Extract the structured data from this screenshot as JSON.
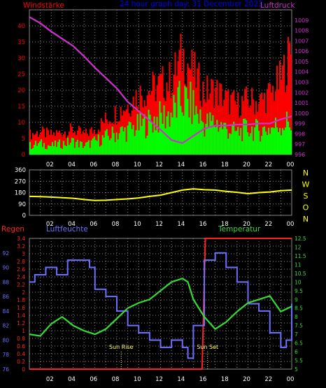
{
  "colors": {
    "background": "#000000",
    "plot_bg": "#000000",
    "grid": "#8a8a8a",
    "axis_text": "#ffffff",
    "wind_gust": "#ff0000",
    "wind_avg": "#00ff00",
    "pressure": "#cc33cc",
    "direction": "#ffff00",
    "humidity": "#6f6fff",
    "temperature": "#33dd33",
    "rain": "#ff2020",
    "sun": "#ffff66",
    "title": "#0000ff"
  },
  "panel1": {
    "title": "24 hour graph day: 31 December 2023",
    "left_label": "Windstärke",
    "right_label": "Luftdruck"
  },
  "panel2": {
    "right_letters": [
      "N",
      "W",
      "S",
      "O",
      "N"
    ]
  },
  "panel3": {
    "left_label": "Regen",
    "mid_label": "Luftfeuchte",
    "right_label": "Temperatur",
    "sunrise_label": "Sun Rise",
    "sunset_label": "Sun Set"
  },
  "chart_data": [
    {
      "type": "bar",
      "name": "wind",
      "title": "24 hour graph day: 31 December 2023",
      "x_ticks": [
        "02",
        "04",
        "06",
        "08",
        "10",
        "12",
        "14",
        "16",
        "18",
        "20",
        "22",
        "00"
      ],
      "x_range_hours": [
        0,
        24
      ],
      "ylim_left": [
        0,
        45
      ],
      "y_ticks_left": [
        0,
        5,
        10,
        15,
        20,
        25,
        30,
        35,
        40
      ],
      "ylim_right": [
        996,
        1010
      ],
      "y_ticks_right": [
        996,
        997,
        998,
        999,
        1000,
        1001,
        1002,
        1003,
        1004,
        1005,
        1006,
        1007,
        1008,
        1009
      ],
      "ylabel_left": "Windstärke",
      "ylabel_right": "Luftdruck",
      "wind_avg_envelope": {
        "hours": [
          0,
          1,
          2,
          3,
          4,
          5,
          6,
          7,
          8,
          9,
          10,
          11,
          12,
          13,
          14,
          15,
          16,
          17,
          18,
          19,
          20,
          21,
          22,
          23,
          24
        ],
        "values": [
          4,
          5,
          4,
          5,
          6,
          4,
          6,
          8,
          10,
          11,
          13,
          15,
          17,
          19,
          25,
          22,
          14,
          15,
          12,
          10,
          12,
          11,
          12,
          14,
          15
        ]
      },
      "wind_gust_envelope": {
        "hours": [
          0,
          1,
          2,
          3,
          4,
          5,
          6,
          7,
          8,
          9,
          10,
          11,
          12,
          13,
          14,
          15,
          16,
          17,
          18,
          19,
          20,
          21,
          22,
          23,
          24
        ],
        "values": [
          8,
          9,
          8,
          9,
          10,
          8,
          10,
          14,
          17,
          20,
          24,
          26,
          28,
          30,
          40,
          33,
          25,
          26,
          22,
          20,
          22,
          21,
          24,
          30,
          42
        ]
      },
      "pressure_line": {
        "hours": [
          0,
          1,
          2,
          3,
          4,
          5,
          6,
          7,
          8,
          9,
          10,
          11,
          12,
          13,
          14,
          15,
          16,
          17,
          18,
          19,
          20,
          21,
          22,
          23,
          24
        ],
        "values": [
          1009.3,
          1008.7,
          1007.9,
          1007.2,
          1006.5,
          1005.5,
          1004.4,
          1003.4,
          1002.4,
          1001.1,
          1000.2,
          999.3,
          998.4,
          997.4,
          997.1,
          997.8,
          998.5,
          998.8,
          998.8,
          998.9,
          998.9,
          999.0,
          999.0,
          999.4,
          999.7
        ]
      }
    },
    {
      "type": "line",
      "name": "wind direction",
      "x_ticks": [
        "02",
        "04",
        "06",
        "08",
        "10",
        "12",
        "14",
        "16",
        "18",
        "20",
        "22",
        "00"
      ],
      "x_range_hours": [
        0,
        24
      ],
      "ylim": [
        0,
        360
      ],
      "y_ticks": [
        0,
        90,
        180,
        270,
        360
      ],
      "y_right_labels": [
        "N",
        "W",
        "S",
        "O",
        "N"
      ],
      "series": [
        {
          "hours": [
            0,
            1,
            2,
            3,
            4,
            5,
            6,
            7,
            8,
            9,
            10,
            11,
            12,
            13,
            14,
            15,
            16,
            17,
            18,
            19,
            20,
            21,
            22,
            23,
            24
          ],
          "values": [
            150,
            148,
            145,
            140,
            135,
            125,
            118,
            120,
            125,
            130,
            138,
            150,
            160,
            180,
            200,
            210,
            203,
            200,
            190,
            182,
            172,
            180,
            185,
            195,
            200
          ]
        }
      ]
    },
    {
      "type": "line",
      "name": "rain, humidity and temperature",
      "x_ticks": [
        "02",
        "04",
        "06",
        "08",
        "10",
        "12",
        "14",
        "16",
        "18",
        "20",
        "22",
        "00"
      ],
      "x_range_hours": [
        0,
        24
      ],
      "ylim_rain": [
        0,
        3.4
      ],
      "y_ticks_rain": [
        0,
        0.2,
        0.4,
        0.6,
        0.8,
        1,
        1.2,
        1.4,
        1.6,
        1.8,
        2,
        2.2,
        2.4,
        2.6,
        2.8,
        3,
        3.2,
        3.4
      ],
      "ylim_humidity": [
        76,
        94
      ],
      "y_ticks_humidity": [
        76,
        78,
        80,
        82,
        84,
        86,
        88,
        90,
        92
      ],
      "ylim_temperature": [
        5,
        12.5
      ],
      "y_ticks_temperature": [
        5,
        5.5,
        6,
        6.5,
        7,
        7.5,
        8,
        8.5,
        9,
        9.5,
        10,
        10.5,
        11,
        11.5,
        12,
        12.5
      ],
      "sunrise_hour": 8.4,
      "sunset_hour": 16.3,
      "humidity": {
        "hours": [
          0,
          0.5,
          1.5,
          2.5,
          3.5,
          4.5,
          5.5,
          6,
          7,
          8,
          9,
          10,
          11,
          12,
          13,
          14,
          14.5,
          15,
          16,
          17,
          18,
          19,
          20,
          21,
          22,
          23,
          23.5,
          24
        ],
        "values": [
          88,
          89,
          90,
          89,
          91,
          91,
          90,
          87,
          86,
          84,
          82,
          81,
          80,
          79,
          80,
          79,
          77.5,
          82,
          91,
          92,
          90,
          88,
          85,
          84,
          81,
          79,
          80,
          85
        ]
      },
      "temperature": {
        "hours": [
          0,
          1,
          2,
          3,
          4,
          5,
          6,
          7,
          8,
          9,
          10,
          11,
          12,
          13,
          14,
          14.5,
          15,
          16,
          17,
          18,
          19,
          20,
          21,
          22,
          23,
          24
        ],
        "values": [
          7.0,
          6.9,
          7.6,
          8.0,
          7.5,
          7.2,
          7.0,
          7.3,
          7.9,
          8.5,
          8.8,
          9.0,
          9.5,
          10.0,
          10.2,
          10.0,
          9.0,
          8.0,
          7.3,
          7.7,
          8.3,
          8.8,
          9.0,
          9.2,
          8.3,
          8.6
        ]
      },
      "rain": {
        "hours": [
          0,
          15.8,
          16.1,
          24
        ],
        "values": [
          0,
          0,
          3.4,
          3.4
        ]
      }
    }
  ]
}
